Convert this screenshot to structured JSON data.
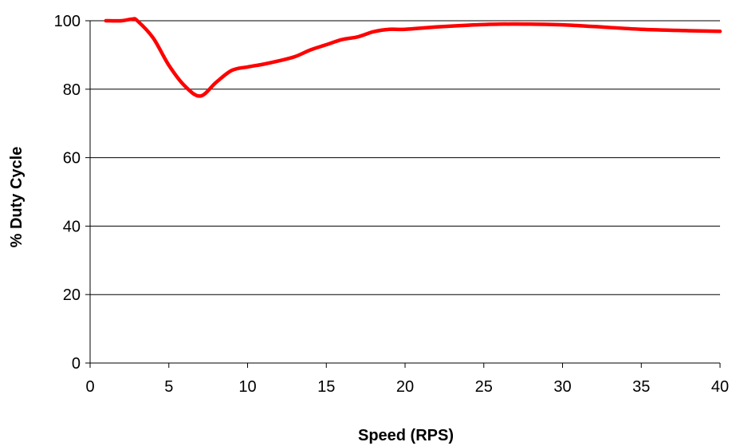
{
  "chart_data": {
    "type": "line",
    "title": "",
    "xlabel": "Speed (RPS)",
    "ylabel": "% Duty Cycle",
    "xlim": [
      0,
      40
    ],
    "ylim": [
      0,
      100
    ],
    "x_ticks": [
      0,
      5,
      10,
      15,
      20,
      25,
      30,
      35,
      40
    ],
    "y_ticks": [
      0,
      20,
      40,
      60,
      80,
      100
    ],
    "grid": "horizontal",
    "legend": "none",
    "colors": {
      "line": "#ff0000",
      "grid": "#000000"
    },
    "series": [
      {
        "x": [
          1,
          2,
          2.7,
          3,
          4,
          5,
          6,
          7,
          8,
          9,
          10,
          11,
          12,
          13,
          14,
          15,
          16,
          17,
          18,
          19,
          20,
          22,
          24,
          26,
          28,
          30,
          32,
          35,
          38,
          40
        ],
        "values": [
          100,
          100,
          100.5,
          100,
          95,
          87,
          81,
          78,
          82,
          85.5,
          86.5,
          87.3,
          88.3,
          89.5,
          91.5,
          93,
          94.5,
          95.3,
          96.8,
          97.5,
          97.5,
          98.2,
          98.7,
          99,
          99,
          98.8,
          98.3,
          97.5,
          97.1,
          96.9
        ]
      }
    ]
  }
}
